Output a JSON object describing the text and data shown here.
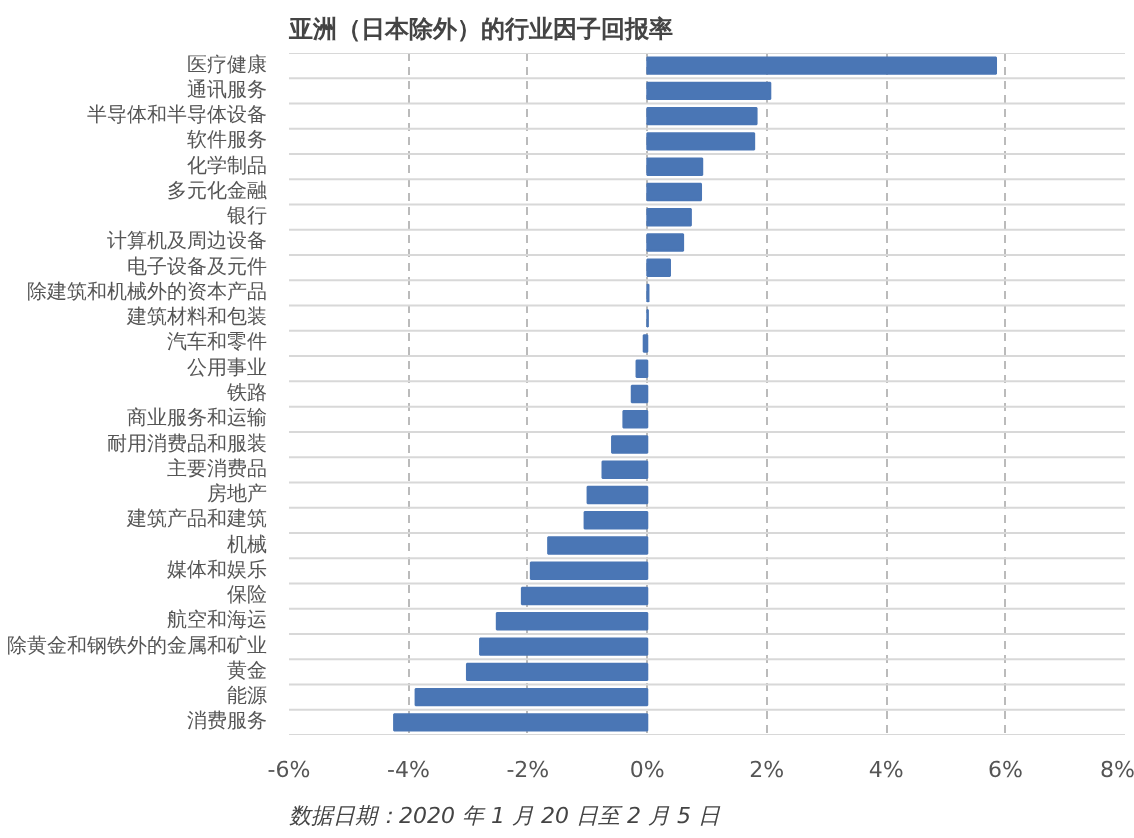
{
  "chart_data": {
    "type": "bar",
    "orientation": "horizontal",
    "title": "亚洲（日本除外）的行业因子回报率",
    "categories": [
      "医疗健康",
      "通讯服务",
      "半导体和半导体设备",
      "软件服务",
      "化学制品",
      "多元化金融",
      "银行",
      "计算机及周边设备",
      "电子设备及元件",
      "除建筑和机械外的资本产品",
      "建筑材料和包装",
      "汽车和零件",
      "公用事业",
      "铁路",
      "商业服务和运输",
      "耐用消费品和服装",
      "主要消费品",
      "房地产",
      "建筑产品和建筑",
      "机械",
      "媒体和娱乐",
      "保险",
      "航空和海运",
      "除黄金和钢铁外的金属和矿业",
      "黄金",
      "能源",
      "消费服务"
    ],
    "values": [
      5.84,
      2.06,
      1.83,
      1.79,
      0.92,
      0.9,
      0.73,
      0.6,
      0.38,
      0.02,
      0.01,
      -0.06,
      -0.18,
      -0.26,
      -0.4,
      -0.59,
      -0.75,
      -1.0,
      -1.05,
      -1.66,
      -1.95,
      -2.1,
      -2.52,
      -2.8,
      -3.02,
      -3.88,
      -4.24
    ],
    "color": "#4a76b5",
    "xlim": [
      -6,
      8
    ],
    "xticks": [
      {
        "value": -6,
        "label": "-6%"
      },
      {
        "value": -4,
        "label": "-4%"
      },
      {
        "value": -2,
        "label": "-2%"
      },
      {
        "value": 0,
        "label": "0%"
      },
      {
        "value": 2,
        "label": "2%"
      },
      {
        "value": 4,
        "label": "4%"
      },
      {
        "value": 6,
        "label": "6%"
      },
      {
        "value": 8,
        "label": "8%"
      }
    ],
    "grid": true,
    "annotations": [
      "数据日期：2020 年 1 月 20 日至 2 月 5 日"
    ]
  }
}
